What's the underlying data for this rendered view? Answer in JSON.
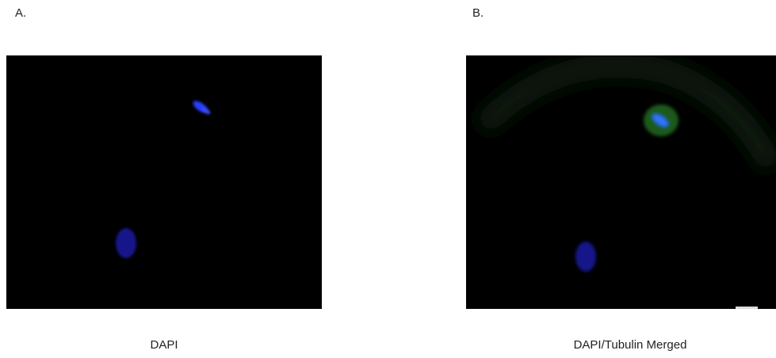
{
  "panels": [
    {
      "label": "A.",
      "caption": "DAPI"
    },
    {
      "label": "B.",
      "caption": "DAPI/Tubulin Merged"
    }
  ]
}
